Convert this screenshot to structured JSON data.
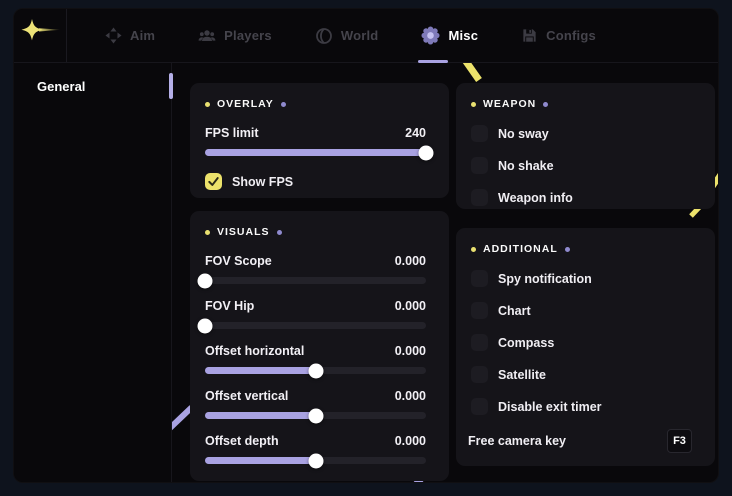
{
  "window": {
    "tabs": [
      {
        "label": "Aim",
        "icon": "move-icon",
        "active": false
      },
      {
        "label": "Players",
        "icon": "players-icon",
        "active": false
      },
      {
        "label": "World",
        "icon": "globe-icon",
        "active": false
      },
      {
        "label": "Misc",
        "icon": "gear-icon",
        "active": true
      },
      {
        "label": "Configs",
        "icon": "save-icon",
        "active": false
      }
    ]
  },
  "sidebar": {
    "items": [
      {
        "label": "General",
        "active": true
      }
    ]
  },
  "panels": {
    "overlay": {
      "title": "OVERLAY",
      "sliders": [
        {
          "label": "FPS limit",
          "value": "240",
          "fill": 100
        }
      ],
      "checkboxes": [
        {
          "label": "Show FPS",
          "checked": true
        }
      ]
    },
    "visuals": {
      "title": "VISUALS",
      "sliders": [
        {
          "label": "FOV Scope",
          "value": "0.000",
          "fill": 0
        },
        {
          "label": "FOV Hip",
          "value": "0.000",
          "fill": 0
        },
        {
          "label": "Offset horizontal",
          "value": "0.000",
          "fill": 50
        },
        {
          "label": "Offset vertical",
          "value": "0.000",
          "fill": 50
        },
        {
          "label": "Offset depth",
          "value": "0.000",
          "fill": 50
        }
      ]
    },
    "weapon": {
      "title": "WEAPON",
      "checkboxes": [
        {
          "label": "No sway",
          "checked": false
        },
        {
          "label": "No shake",
          "checked": false
        },
        {
          "label": "Weapon info",
          "checked": false
        }
      ]
    },
    "additional": {
      "title": "ADDITIONAL",
      "checkboxes": [
        {
          "label": "Spy notification",
          "checked": false
        },
        {
          "label": "Chart",
          "checked": false
        },
        {
          "label": "Compass",
          "checked": false
        },
        {
          "label": "Satellite",
          "checked": false
        },
        {
          "label": "Disable exit timer",
          "checked": false
        }
      ],
      "keybind": {
        "label": "Free camera key",
        "key": "F3"
      }
    }
  },
  "colors": {
    "accent_yellow": "#e9e070",
    "accent_purple": "#a9a2e2",
    "checkbox_yellow": "#ece26b",
    "active_text": "#ffffff",
    "inactive_text": "#45444c",
    "panel_bg": "#151419",
    "window_bg": "#09080b",
    "frame_bg": "#0e131d"
  }
}
